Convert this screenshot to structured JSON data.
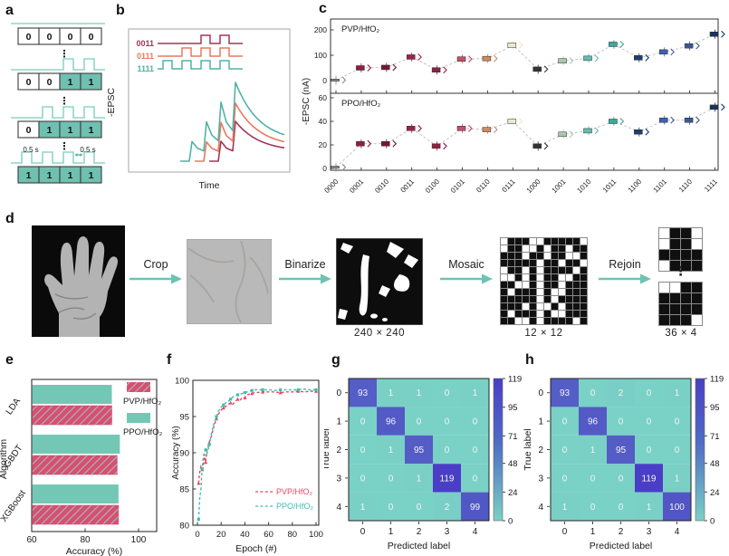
{
  "figure": {
    "accent_teal": "#6cc3b1",
    "background": "#ffffff"
  },
  "panels": {
    "a": {
      "label": "a",
      "interval_label": "0.5 s",
      "dots": "⋮",
      "pulse_color": "#8fd6c7",
      "cell_on_color": "#6fc0b1",
      "sequences": [
        {
          "bits": [
            0,
            0,
            0,
            0
          ]
        },
        {
          "bits": [
            0,
            0,
            1,
            1
          ]
        },
        {
          "bits": [
            0,
            1,
            1,
            1
          ]
        },
        {
          "bits": [
            1,
            1,
            1,
            1
          ]
        }
      ]
    },
    "b": {
      "label": "b",
      "ylabel": "-EPSC",
      "xlabel": "Time",
      "legend": [
        {
          "code": "0011",
          "color": "#a63456",
          "bits": [
            0,
            0,
            1,
            1
          ]
        },
        {
          "code": "0111",
          "color": "#e8795f",
          "bits": [
            0,
            1,
            1,
            1
          ]
        },
        {
          "code": "1111",
          "color": "#4fb3a7",
          "bits": [
            1,
            1,
            1,
            1
          ]
        }
      ]
    },
    "c": {
      "label": "c",
      "ylabel": "-EPSC (nA)",
      "chart_data": {
        "type": "line",
        "categories": [
          "0000",
          "0001",
          "0010",
          "0011",
          "0100",
          "0101",
          "0110",
          "0111",
          "1000",
          "1001",
          "1010",
          "1011",
          "1100",
          "1101",
          "1110",
          "1111"
        ],
        "series": [
          {
            "name": "PVP/HfO₂",
            "values": [
              2,
              50,
              52,
              93,
              42,
              85,
              87,
              140,
              45,
              78,
              88,
              143,
              90,
              113,
              137,
              183
            ],
            "yticks": [
              0,
              100,
              200
            ],
            "ylim": [
              -12,
              235
            ]
          },
          {
            "name": "PPO/HfO₂",
            "values": [
              1,
              21,
              21,
              34,
              19,
              34,
              33,
              40,
              19,
              29,
              32,
              40,
              31,
              41,
              41,
              52
            ],
            "yticks": [
              0,
              20,
              40,
              60
            ],
            "ylim": [
              -3,
              65
            ]
          }
        ],
        "point_colors": [
          "#8c8c8c",
          "#8e1d43",
          "#78163a",
          "#9e2348",
          "#8f2040",
          "#c2506b",
          "#cf8a62",
          "#efe7cf",
          "#333333",
          "#a5cbaa",
          "#63bdb0",
          "#3aa89b",
          "#1e3f72",
          "#4061ae",
          "#3b5795",
          "#17345f"
        ],
        "ylabel": "-EPSC (nA)",
        "legend_position": "none",
        "grid": false
      }
    },
    "d": {
      "label": "d",
      "steps": [
        "Crop",
        "Binarize",
        "Mosaic",
        "Rejoin"
      ],
      "sizes": {
        "binarized": "240 × 240",
        "mosaic": "12 × 12",
        "rejoin": "36 × 4"
      },
      "dots": "⋮",
      "mosaic_matrix": [
        [
          1,
          0,
          0,
          0,
          1,
          1,
          0,
          0,
          0,
          0,
          0,
          1
        ],
        [
          1,
          0,
          0,
          1,
          1,
          0,
          1,
          0,
          0,
          1,
          0,
          0
        ],
        [
          0,
          0,
          0,
          1,
          0,
          0,
          1,
          0,
          0,
          1,
          1,
          0
        ],
        [
          0,
          0,
          0,
          0,
          0,
          1,
          0,
          0,
          1,
          0,
          0,
          1
        ],
        [
          1,
          0,
          0,
          1,
          0,
          1,
          0,
          0,
          0,
          0,
          1,
          0
        ],
        [
          1,
          1,
          0,
          1,
          0,
          1,
          0,
          0,
          1,
          1,
          0,
          0
        ],
        [
          0,
          0,
          1,
          1,
          0,
          1,
          0,
          0,
          1,
          0,
          0,
          0
        ],
        [
          0,
          1,
          0,
          0,
          0,
          1,
          0,
          1,
          1,
          0,
          0,
          0
        ],
        [
          0,
          0,
          0,
          0,
          0,
          1,
          0,
          1,
          0,
          0,
          0,
          0
        ],
        [
          0,
          0,
          0,
          1,
          0,
          1,
          1,
          0,
          1,
          0,
          0,
          0
        ],
        [
          0,
          1,
          0,
          0,
          0,
          1,
          0,
          1,
          1,
          0,
          0,
          0
        ],
        [
          0,
          0,
          1,
          1,
          0,
          1,
          0,
          0,
          0,
          0,
          1,
          0
        ]
      ],
      "rejoin_top": [
        [
          1,
          0,
          0,
          1
        ],
        [
          1,
          0,
          0,
          1
        ],
        [
          0,
          0,
          0,
          0
        ],
        [
          1,
          0,
          0,
          0
        ]
      ],
      "rejoin_bottom": [
        [
          1,
          1,
          0,
          0
        ],
        [
          0,
          0,
          0,
          0
        ],
        [
          0,
          0,
          0,
          0
        ],
        [
          0,
          0,
          0,
          1
        ]
      ]
    },
    "e": {
      "label": "e",
      "chart_data": {
        "type": "bar",
        "orientation": "horizontal",
        "categories": [
          "LDA",
          "GBDT",
          "XGBoost"
        ],
        "series": [
          {
            "name": "PVP/HfO₂",
            "values": [
              90,
              92,
              92.5
            ],
            "color": "#d84f72",
            "hatch": true
          },
          {
            "name": "PPO/HfO₂",
            "values": [
              90,
              93,
              92.5
            ],
            "color": "#74c7b5",
            "hatch": false
          }
        ],
        "xlabel": "Accuracy (%)",
        "ylabel": "Algorithm",
        "xticks": [
          60,
          80,
          100
        ],
        "xlim": [
          60,
          106.5
        ],
        "legend_position": "top-right"
      }
    },
    "f": {
      "label": "f",
      "chart_data": {
        "type": "line",
        "xlabel": "Epoch (#)",
        "ylabel": "Accuracy (%)",
        "xticks": [
          0,
          20,
          40,
          60,
          80,
          100
        ],
        "yticks": [
          80,
          85,
          90,
          95,
          100
        ],
        "xlim": [
          -4,
          104
        ],
        "ylim": [
          80,
          100.5
        ],
        "legend_position": "bottom-right",
        "series": [
          {
            "name": "PVP/HfO₂",
            "color": "#e8485f",
            "marker": "triangle",
            "points": [
              [
                1,
                85.8
              ],
              [
                2,
                87.4
              ],
              [
                3,
                88.1
              ],
              [
                4,
                87.7
              ],
              [
                5,
                88.3
              ],
              [
                6,
                89.8
              ],
              [
                7,
                88.7
              ],
              [
                8,
                90.3
              ],
              [
                9,
                90.9
              ],
              [
                10,
                91.4
              ],
              [
                12,
                92.4
              ],
              [
                14,
                93.7
              ],
              [
                16,
                94.7
              ],
              [
                18,
                95.4
              ],
              [
                20,
                95.9
              ],
              [
                22,
                96.2
              ],
              [
                24,
                96.4
              ],
              [
                26,
                96.7
              ],
              [
                28,
                96.9
              ],
              [
                30,
                96.7
              ],
              [
                32,
                97.1
              ],
              [
                34,
                97.4
              ],
              [
                36,
                97.3
              ],
              [
                38,
                97.6
              ],
              [
                40,
                97.6
              ],
              [
                42,
                98
              ],
              [
                44,
                98.1
              ],
              [
                46,
                98.2
              ],
              [
                48,
                98.3
              ],
              [
                50,
                98.3
              ],
              [
                55,
                98.4
              ],
              [
                60,
                98.4
              ],
              [
                65,
                98.4
              ],
              [
                70,
                98.3
              ],
              [
                75,
                98.4
              ],
              [
                80,
                98.4
              ],
              [
                85,
                98.5
              ],
              [
                90,
                98.4
              ],
              [
                95,
                98.5
              ],
              [
                100,
                98.5
              ]
            ]
          },
          {
            "name": "PPO/HfO₂",
            "color": "#3fbdb0",
            "marker": "square",
            "points": [
              [
                1,
                80.8
              ],
              [
                2,
                83.8
              ],
              [
                3,
                85.1
              ],
              [
                4,
                87.8
              ],
              [
                5,
                89.5
              ],
              [
                6,
                90.1
              ],
              [
                7,
                90.4
              ],
              [
                8,
                89.9
              ],
              [
                9,
                90.3
              ],
              [
                10,
                91.1
              ],
              [
                12,
                92.8
              ],
              [
                14,
                94
              ],
              [
                16,
                95
              ],
              [
                18,
                95.8
              ],
              [
                20,
                96.3
              ],
              [
                22,
                96.6
              ],
              [
                24,
                96.9
              ],
              [
                26,
                97.1
              ],
              [
                28,
                97.4
              ],
              [
                30,
                97.7
              ],
              [
                32,
                97.9
              ],
              [
                34,
                98
              ],
              [
                36,
                98.1
              ],
              [
                38,
                98.2
              ],
              [
                40,
                98.3
              ],
              [
                42,
                98.4
              ],
              [
                44,
                98.5
              ],
              [
                46,
                98.6
              ],
              [
                48,
                98.7
              ],
              [
                50,
                98.7
              ],
              [
                55,
                98.7
              ],
              [
                60,
                98.7
              ],
              [
                65,
                98.6
              ],
              [
                70,
                98.7
              ],
              [
                75,
                98.7
              ],
              [
                80,
                98.7
              ],
              [
                85,
                98.7
              ],
              [
                90,
                98.8
              ],
              [
                95,
                98.7
              ],
              [
                100,
                98.7
              ]
            ]
          }
        ]
      }
    },
    "g": {
      "label": "g",
      "chart_data": {
        "type": "heatmap",
        "xlabel": "Predicted label",
        "ylabel": "True label",
        "row_labels": [
          "0",
          "1",
          "2",
          "3",
          "4"
        ],
        "col_labels": [
          "0",
          "1",
          "2",
          "3",
          "4"
        ],
        "matrix": [
          [
            93,
            1,
            1,
            0,
            1
          ],
          [
            0,
            96,
            0,
            0,
            0
          ],
          [
            0,
            1,
            95,
            0,
            0
          ],
          [
            0,
            0,
            1,
            119,
            0
          ],
          [
            1,
            0,
            0,
            2,
            99
          ]
        ],
        "colorbar_ticks": [
          119,
          95,
          71,
          48,
          24,
          0
        ],
        "vmin": 0,
        "vmax": 119,
        "color_low": "#7ad1c5",
        "color_high": "#4a3ec6"
      }
    },
    "h": {
      "label": "h",
      "chart_data": {
        "type": "heatmap",
        "xlabel": "Predicted label",
        "ylabel": "True label",
        "row_labels": [
          "0",
          "1",
          "2",
          "3",
          "4"
        ],
        "col_labels": [
          "0",
          "1",
          "2",
          "3",
          "4"
        ],
        "matrix": [
          [
            93,
            0,
            2,
            0,
            1
          ],
          [
            0,
            96,
            0,
            0,
            0
          ],
          [
            0,
            1,
            95,
            0,
            0
          ],
          [
            0,
            0,
            0,
            119,
            1
          ],
          [
            1,
            0,
            0,
            1,
            100
          ]
        ],
        "colorbar_ticks": [
          119,
          95,
          71,
          48,
          24,
          0
        ],
        "vmin": 0,
        "vmax": 119,
        "color_low": "#7ad1c5",
        "color_high": "#4a3ec6"
      }
    }
  }
}
